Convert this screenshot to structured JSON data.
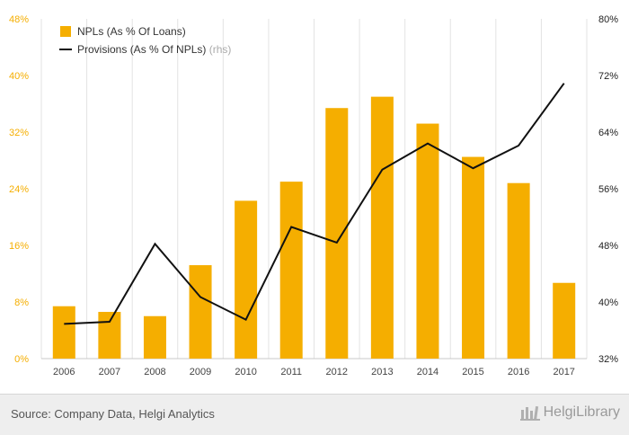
{
  "chart_data": {
    "type": "bar+line",
    "categories": [
      "2006",
      "2007",
      "2008",
      "2009",
      "2010",
      "2011",
      "2012",
      "2013",
      "2014",
      "2015",
      "2016",
      "2017"
    ],
    "series": [
      {
        "name": "NPLs (As % Of Loans)",
        "type": "bar",
        "axis": "left",
        "color": "#F5AE00",
        "values": [
          7.4,
          6.6,
          6.0,
          13.2,
          22.3,
          25.0,
          35.4,
          37.0,
          33.2,
          28.5,
          24.8,
          10.7
        ]
      },
      {
        "name": "Provisions (As % Of NPLs)",
        "name_suffix": "(rhs)",
        "type": "line",
        "axis": "right",
        "color": "#111111",
        "values": [
          36.9,
          37.2,
          48.2,
          40.7,
          37.5,
          50.6,
          48.4,
          58.7,
          62.4,
          58.9,
          62.1,
          70.9
        ]
      }
    ],
    "y_left": {
      "min": 0,
      "max": 48,
      "ticks": [
        "0%",
        "8%",
        "16%",
        "24%",
        "32%",
        "40%",
        "48%"
      ],
      "color": "#F5AE00"
    },
    "y_right": {
      "min": 32,
      "max": 80,
      "ticks": [
        "32%",
        "40%",
        "48%",
        "56%",
        "64%",
        "72%",
        "80%"
      ],
      "color": "#222222"
    },
    "grid": "vertical",
    "legend_position": "top-left"
  },
  "footer": {
    "source": "Source: Company Data, Helgi Analytics",
    "brand": "HelgiLibrary"
  }
}
